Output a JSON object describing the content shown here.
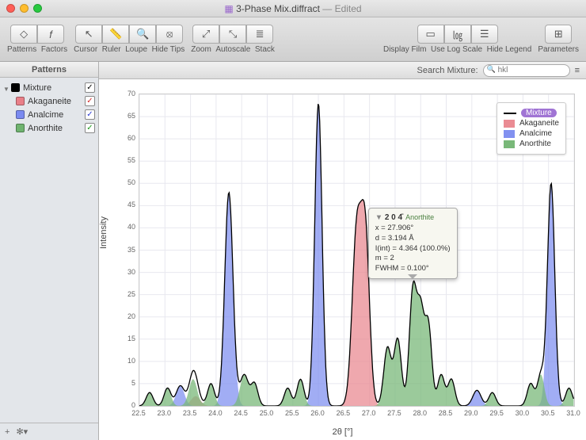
{
  "window": {
    "title": "3-Phase Mix.diffract",
    "edited_label": "— Edited",
    "doc_icon": "▦"
  },
  "toolbar": {
    "patterns": "Patterns",
    "factors": "Factors",
    "cursor": "Cursor",
    "ruler": "Ruler",
    "loupe": "Loupe",
    "hidetips": "Hide Tips",
    "zoom": "Zoom",
    "autoscale": "Autoscale",
    "stack": "Stack",
    "displayfilm": "Display Film",
    "uselog": "Use Log Scale",
    "hidelegend": "Hide Legend",
    "parameters": "Parameters"
  },
  "sidebar": {
    "title": "Patterns",
    "items": [
      {
        "name": "Mixture",
        "color": "#000000",
        "check_color": "#000000",
        "child": false
      },
      {
        "name": "Akaganeite",
        "color": "#e97f88",
        "check_color": "#d42a2a",
        "child": true
      },
      {
        "name": "Analcime",
        "color": "#7a8af0",
        "check_color": "#2a3ad4",
        "child": true
      },
      {
        "name": "Anorthite",
        "color": "#6fb36f",
        "check_color": "#1a991a",
        "child": true
      }
    ],
    "footer": {
      "add": "+",
      "gear": "✻▾"
    }
  },
  "search": {
    "label": "Search Mixture:",
    "placeholder": "hkl",
    "menu": "≡"
  },
  "chart": {
    "ylabel": "Intensity",
    "xlabel": "2θ [°]",
    "xlim": [
      22.5,
      31.0
    ],
    "xtick_step": 0.5,
    "ylim": [
      0,
      70
    ],
    "ytick_step": 5,
    "background": "#ffffff",
    "grid": "#e6e6ee",
    "series": [
      {
        "name": "Akaganeite",
        "color": "#ea8b93",
        "peaks": [
          {
            "x": 23.6,
            "h": 2.2,
            "w": 0.2
          },
          {
            "x": 26.75,
            "h": 39,
            "w": 0.2
          },
          {
            "x": 26.92,
            "h": 37,
            "w": 0.18
          }
        ]
      },
      {
        "name": "Analcime",
        "color": "#8291f0",
        "peaks": [
          {
            "x": 24.25,
            "h": 48,
            "w": 0.18
          },
          {
            "x": 26.0,
            "h": 68,
            "w": 0.16
          },
          {
            "x": 30.55,
            "h": 50,
            "w": 0.16
          },
          {
            "x": 23.3,
            "h": 4.5,
            "w": 0.18
          },
          {
            "x": 29.1,
            "h": 3.5,
            "w": 0.18
          }
        ]
      },
      {
        "name": "Anorthite",
        "color": "#79b879",
        "peaks": [
          {
            "x": 22.7,
            "h": 3,
            "w": 0.15
          },
          {
            "x": 23.05,
            "h": 4,
            "w": 0.15
          },
          {
            "x": 23.55,
            "h": 6,
            "w": 0.18
          },
          {
            "x": 23.9,
            "h": 5,
            "w": 0.15
          },
          {
            "x": 24.55,
            "h": 7,
            "w": 0.18
          },
          {
            "x": 24.75,
            "h": 5,
            "w": 0.15
          },
          {
            "x": 25.4,
            "h": 4,
            "w": 0.15
          },
          {
            "x": 25.65,
            "h": 6,
            "w": 0.15
          },
          {
            "x": 27.35,
            "h": 13,
            "w": 0.16
          },
          {
            "x": 27.55,
            "h": 15,
            "w": 0.16
          },
          {
            "x": 27.85,
            "h": 26,
            "w": 0.16
          },
          {
            "x": 28.0,
            "h": 20,
            "w": 0.15
          },
          {
            "x": 28.15,
            "h": 18,
            "w": 0.15
          },
          {
            "x": 28.4,
            "h": 7,
            "w": 0.15
          },
          {
            "x": 28.6,
            "h": 6,
            "w": 0.15
          },
          {
            "x": 29.4,
            "h": 3,
            "w": 0.15
          },
          {
            "x": 30.15,
            "h": 5,
            "w": 0.15
          },
          {
            "x": 30.35,
            "h": 7,
            "w": 0.15
          },
          {
            "x": 30.9,
            "h": 4,
            "w": 0.15
          }
        ]
      }
    ],
    "legend": {
      "mixture": "Mixture",
      "akaganeite": "Akaganeite",
      "analcime": "Analcime",
      "anorthite": "Anorthite",
      "colors": {
        "akag": "#ea8b93",
        "anal": "#8291f0",
        "anor": "#79b879"
      }
    },
    "tooltip": {
      "hkl": "2 0 4̄",
      "phase": "Anorthite",
      "x_line": "x = 27.906°",
      "d_line": "d = 3.194 Å",
      "i_line": "I(int) = 4.364 (100.0%)",
      "m_line": "m = 2",
      "fwhm_line": "FWHM = 0.100°",
      "at_x": 27.9
    }
  }
}
